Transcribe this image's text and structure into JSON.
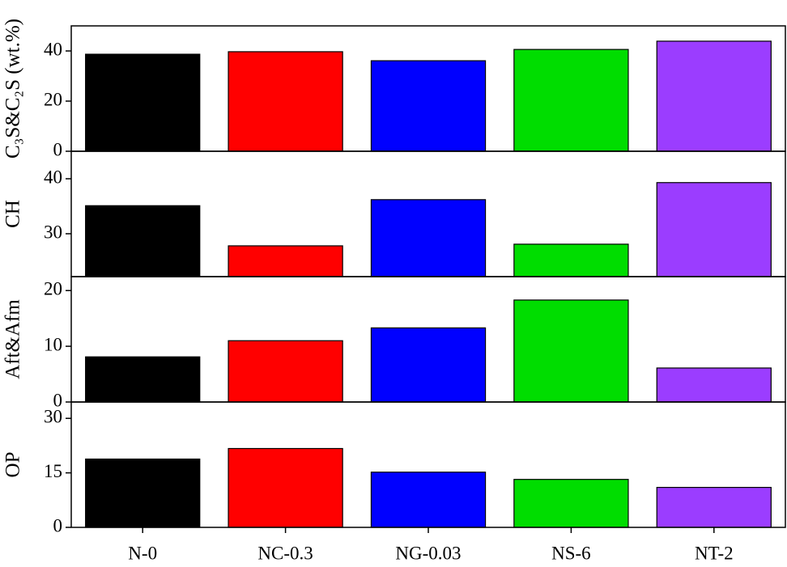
{
  "chart_data": [
    {
      "type": "bar",
      "ylabel": "C₃S&C₂S (wt.%)",
      "values": [
        38.7,
        39.7,
        36.1,
        40.6,
        43.9
      ],
      "colors": [
        "#000000",
        "#ff0000",
        "#0000ff",
        "#00dd00",
        "#9b3dff"
      ],
      "ylim": [
        0,
        50
      ],
      "yticks": [
        0,
        20,
        40
      ]
    },
    {
      "type": "bar",
      "ylabel": "CH",
      "values": [
        35.1,
        27.8,
        36.2,
        28.1,
        39.3
      ],
      "colors": [
        "#000000",
        "#ff0000",
        "#0000ff",
        "#00dd00",
        "#9b3dff"
      ],
      "ylim": [
        22.2,
        45
      ],
      "yticks": [
        30,
        40
      ]
    },
    {
      "type": "bar",
      "ylabel": "Aft&Afm",
      "values": [
        8.1,
        11.0,
        13.3,
        18.3,
        6.1
      ],
      "colors": [
        "#000000",
        "#ff0000",
        "#0000ff",
        "#00dd00",
        "#9b3dff"
      ],
      "ylim": [
        0,
        22.5
      ],
      "yticks": [
        0,
        10,
        20
      ]
    },
    {
      "type": "bar",
      "ylabel": "OP",
      "categories": [
        "N-0",
        "NC-0.3",
        "NG-0.03",
        "NS-6",
        "NT-2"
      ],
      "values": [
        18.8,
        21.7,
        15.2,
        13.2,
        11.0
      ],
      "colors": [
        "#000000",
        "#ff0000",
        "#0000ff",
        "#00dd00",
        "#9b3dff"
      ],
      "ylim": [
        0,
        34.5
      ],
      "yticks": [
        0,
        15,
        30
      ]
    }
  ]
}
